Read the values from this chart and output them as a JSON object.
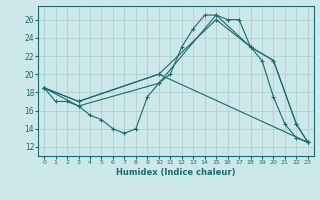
{
  "xlabel": "Humidex (Indice chaleur)",
  "ylabel": "",
  "bg_color": "#cce8e8",
  "grid_color": "#aacccc",
  "line_color": "#1a6b6b",
  "xlim": [
    -0.5,
    23.5
  ],
  "ylim": [
    11,
    27.5
  ],
  "yticks": [
    12,
    14,
    16,
    18,
    20,
    22,
    24,
    26
  ],
  "xticks": [
    0,
    1,
    2,
    3,
    4,
    5,
    6,
    7,
    8,
    9,
    10,
    11,
    12,
    13,
    14,
    15,
    16,
    17,
    18,
    19,
    20,
    21,
    22,
    23
  ],
  "series": [
    {
      "x": [
        0,
        1,
        2,
        3,
        4,
        5,
        6,
        7,
        8,
        9,
        10,
        11,
        12,
        13,
        14,
        15,
        16,
        17,
        18,
        19,
        20,
        21,
        22,
        23
      ],
      "y": [
        18.5,
        17.0,
        17.0,
        16.5,
        15.5,
        15.0,
        14.0,
        13.5,
        14.0,
        17.5,
        19.0,
        20.0,
        23.0,
        25.0,
        26.5,
        26.5,
        26.0,
        26.0,
        23.0,
        21.5,
        17.5,
        14.5,
        13.0,
        12.5
      ]
    },
    {
      "x": [
        0,
        3,
        10,
        15,
        18,
        20,
        22,
        23
      ],
      "y": [
        18.5,
        17.0,
        20.0,
        26.0,
        23.0,
        21.5,
        14.5,
        12.5
      ]
    },
    {
      "x": [
        0,
        3,
        10,
        15,
        18,
        20,
        22,
        23
      ],
      "y": [
        18.5,
        16.5,
        19.0,
        26.5,
        23.0,
        21.5,
        14.5,
        12.5
      ]
    },
    {
      "x": [
        0,
        3,
        10,
        23
      ],
      "y": [
        18.5,
        17.0,
        20.0,
        12.5
      ]
    }
  ]
}
